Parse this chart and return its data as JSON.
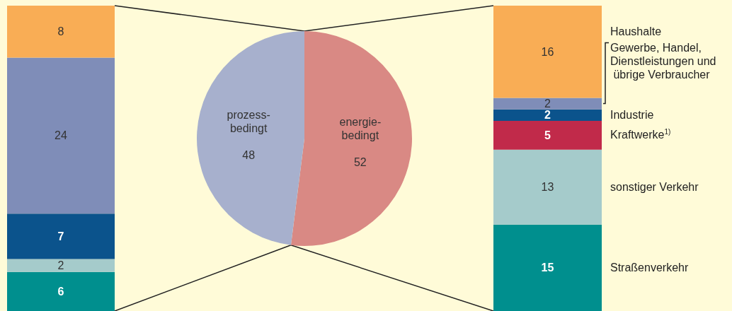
{
  "chart_data": [
    {
      "type": "bar",
      "stacked": true,
      "data_labels": true,
      "categories": [
        null
      ],
      "series": [
        {
          "color": "#008f8e",
          "values": [
            6
          ]
        },
        {
          "color": "#a5cbcb",
          "values": [
            2
          ]
        },
        {
          "color": "#0b538c",
          "values": [
            7
          ]
        },
        {
          "color": "#7f8db8",
          "values": [
            24
          ]
        },
        {
          "color": "#f9ad55",
          "values": [
            8
          ]
        }
      ]
    },
    {
      "type": "pie",
      "data_labels": true,
      "categories": [
        "energie-bedingt",
        "prozess-bedingt"
      ],
      "values": [
        52,
        48
      ],
      "colors": [
        "#d98984",
        "#a7b0cd"
      ]
    },
    {
      "type": "bar",
      "stacked": true,
      "data_labels": true,
      "categories": [
        null
      ],
      "series": [
        {
          "name": "Straßenverkehr",
          "color": "#008f8e",
          "values": [
            15
          ]
        },
        {
          "name": "sonstiger Verkehr",
          "color": "#a5cbcb",
          "values": [
            13
          ]
        },
        {
          "name": "Kraftwerke$^{1)}$",
          "color": "#c12a4a",
          "values": [
            5
          ]
        },
        {
          "name": "Industrie",
          "color": "#0b538c",
          "values": [
            2
          ]
        },
        {
          "name": "Gewerbe, Handel, Dienstleistungen und übrige Verbraucher",
          "color": "#7f8db8",
          "values": [
            2
          ]
        },
        {
          "name": "Haushalte",
          "color": "#f9ad55",
          "values": [
            16
          ]
        }
      ]
    }
  ]
}
